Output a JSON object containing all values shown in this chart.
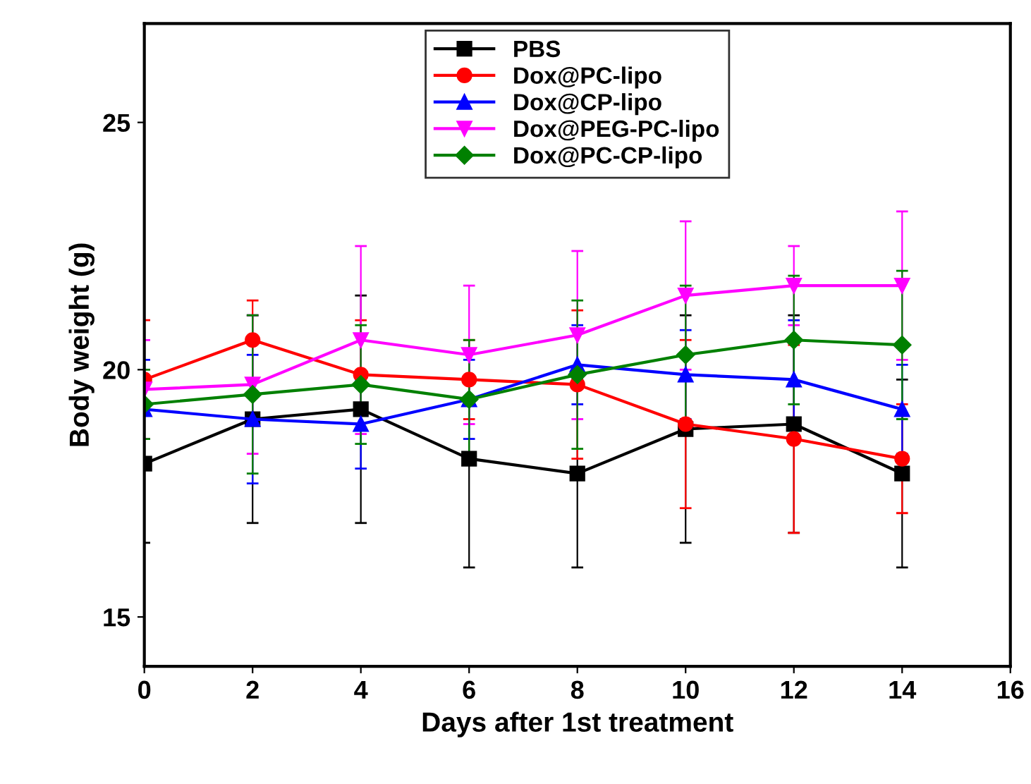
{
  "chart_data": {
    "type": "line",
    "xlabel": "Days after 1st treatment",
    "ylabel": "Body weight (g)",
    "x": [
      0,
      2,
      4,
      6,
      8,
      10,
      12,
      14
    ],
    "xlim": [
      0,
      16
    ],
    "xticks": [
      0,
      2,
      4,
      6,
      8,
      10,
      12,
      14,
      16
    ],
    "ylim": [
      14,
      27
    ],
    "yticks": [
      15,
      20,
      25
    ],
    "grid": false,
    "legend": "top",
    "line_style": "solid",
    "series": [
      {
        "name": "PBS",
        "color": "#000000",
        "marker": "square",
        "values": [
          18.1,
          19.0,
          19.2,
          18.2,
          17.9,
          18.8,
          18.9,
          17.9
        ],
        "errors": [
          1.6,
          2.1,
          2.3,
          2.2,
          1.9,
          2.3,
          2.2,
          1.9
        ]
      },
      {
        "name": "Dox@PC-lipo",
        "color": "#ff0000",
        "marker": "circle",
        "values": [
          19.8,
          20.6,
          19.9,
          19.8,
          19.7,
          18.9,
          18.6,
          18.2
        ],
        "errors": [
          1.2,
          0.8,
          1.1,
          0.8,
          1.5,
          1.7,
          1.9,
          1.1
        ]
      },
      {
        "name": "Dox@CP-lipo",
        "color": "#0000ff",
        "marker": "triangle",
        "values": [
          19.2,
          19.0,
          18.9,
          19.4,
          20.1,
          19.9,
          19.8,
          19.2
        ],
        "errors": [
          1.0,
          1.3,
          0.9,
          0.8,
          0.8,
          0.9,
          1.2,
          0.9
        ]
      },
      {
        "name": "Dox@PEG-PC-lipo",
        "color": "#ff00ff",
        "marker": "triangle_down",
        "values": [
          19.6,
          19.7,
          20.6,
          20.3,
          20.7,
          21.5,
          21.7,
          21.7
        ],
        "errors": [
          1.0,
          1.4,
          1.9,
          1.4,
          1.7,
          1.5,
          0.8,
          1.5
        ]
      },
      {
        "name": "Dox@PC-CP-lipo",
        "color": "#008000",
        "marker": "diamond",
        "values": [
          19.3,
          19.5,
          19.7,
          19.4,
          19.9,
          20.3,
          20.6,
          20.5
        ],
        "errors": [
          0.7,
          1.6,
          1.2,
          1.2,
          1.5,
          1.4,
          1.3,
          1.5
        ]
      }
    ]
  }
}
